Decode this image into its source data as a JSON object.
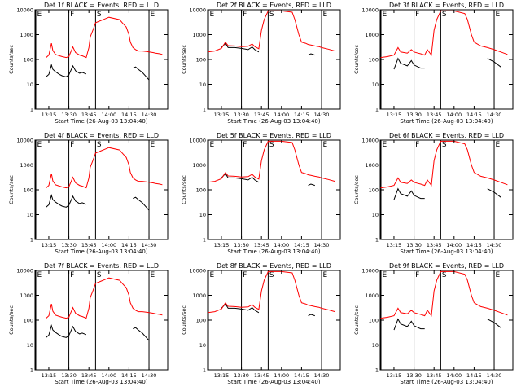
{
  "chart_data": {
    "type": "line",
    "xlabel": "Start Time (26-Aug-03 13:04:40)",
    "ylabel": "Counts/sec",
    "yscale": "log",
    "ylim": [
      1,
      10000
    ],
    "xlim": [
      "13:04:40",
      "14:44:00"
    ],
    "x_ticks": [
      "13:15",
      "13:30",
      "13:45",
      "14:00",
      "14:15",
      "14:30"
    ],
    "y_ticks": [
      "1",
      "10",
      "100",
      "1000",
      "10000"
    ],
    "series_colors": {
      "events": "#000000",
      "lld": "#ff0000"
    },
    "markers": [
      {
        "label": "E",
        "time": "13:04:40",
        "style": "solid"
      },
      {
        "label": "F",
        "time": "13:30",
        "style": "solid"
      },
      {
        "label": "S",
        "time": "13:50",
        "style": "solid"
      },
      {
        "label": "E",
        "time": "14:30",
        "style": "solid"
      }
    ],
    "panels": [
      {
        "title": "Det 1f BLACK = Events, RED = LLD",
        "x": [
          "13:10",
          "13:13",
          "13:15",
          "13:17",
          "13:18",
          "13:20",
          "13:23",
          "13:25",
          "13:28",
          "13:30",
          "13:33",
          "13:35",
          "13:38",
          "13:40",
          "13:43",
          "13:45",
          "13:46",
          "13:48",
          "13:50",
          "14:00",
          "14:08",
          "14:10",
          "14:13",
          "14:15",
          "14:16",
          "14:18",
          "14:20",
          "14:22",
          "14:25",
          "14:28",
          "14:30",
          "14:33",
          "14:35",
          "14:38",
          "14:40"
        ],
        "series": [
          {
            "key": "events",
            "values": [
              null,
              20,
              25,
              60,
              40,
              32,
              25,
              22,
              20,
              24,
              55,
              35,
              28,
              30,
              26,
              null,
              null,
              null,
              null,
              null,
              null,
              null,
              null,
              null,
              null,
              45,
              50,
              40,
              30,
              20,
              15,
              null,
              null,
              null,
              null
            ]
          },
          {
            "key": "lld",
            "values": [
              null,
              120,
              150,
              450,
              230,
              160,
              140,
              130,
              120,
              130,
              320,
              190,
              150,
              140,
              120,
              300,
              800,
              1500,
              3000,
              5000,
              4000,
              3000,
              2000,
              1000,
              500,
              300,
              250,
              220,
              220,
              210,
              200,
              190,
              180,
              170,
              160
            ]
          }
        ]
      },
      {
        "title": "Det 2f BLACK = Events, RED = LLD",
        "x": [
          "13:05",
          "13:10",
          "13:15",
          "13:18",
          "13:20",
          "13:25",
          "13:30",
          "13:35",
          "13:38",
          "13:40",
          "13:43",
          "13:45",
          "13:47",
          "13:50",
          "14:00",
          "14:08",
          "14:10",
          "14:13",
          "14:15",
          "14:18",
          "14:20",
          "14:22",
          "14:25",
          "14:28",
          "14:30",
          "14:35",
          "14:40"
        ],
        "series": [
          {
            "key": "events",
            "values": [
              null,
              null,
              300,
              450,
              300,
              300,
              280,
              250,
              320,
              250,
              200,
              null,
              null,
              null,
              null,
              null,
              null,
              null,
              null,
              null,
              150,
              170,
              150,
              null,
              null,
              null,
              null
            ]
          },
          {
            "key": "lld",
            "values": [
              200,
              220,
              280,
              500,
              360,
              350,
              330,
              340,
              420,
              330,
              270,
              1500,
              4000,
              9000,
              9000,
              8000,
              4000,
              1000,
              500,
              450,
              400,
              380,
              350,
              330,
              300,
              260,
              220
            ]
          }
        ]
      },
      {
        "title": "Det 3f BLACK = Events, RED = LLD",
        "x": [
          "13:05",
          "13:10",
          "13:15",
          "13:18",
          "13:20",
          "13:25",
          "13:28",
          "13:30",
          "13:33",
          "13:35",
          "13:38",
          "13:40",
          "13:43",
          "13:45",
          "13:47",
          "13:50",
          "14:00",
          "14:08",
          "14:10",
          "14:13",
          "14:15",
          "14:18",
          "14:20",
          "14:25",
          "14:30",
          "14:35",
          "14:40"
        ],
        "series": [
          {
            "key": "events",
            "values": [
              null,
              null,
              40,
              110,
              70,
              55,
              90,
              60,
              50,
              45,
              45,
              null,
              null,
              null,
              null,
              null,
              null,
              null,
              null,
              null,
              null,
              null,
              null,
              110,
              80,
              50,
              null
            ]
          },
          {
            "key": "lld",
            "values": [
              120,
              130,
              150,
              300,
              200,
              180,
              250,
              200,
              180,
              170,
              150,
              250,
              150,
              1500,
              4000,
              9000,
              9000,
              7000,
              4000,
              1000,
              500,
              400,
              350,
              300,
              250,
              200,
              160
            ]
          }
        ]
      },
      {
        "title": "Det 4f BLACK = Events, RED = LLD",
        "x": [
          "13:10",
          "13:13",
          "13:15",
          "13:17",
          "13:18",
          "13:20",
          "13:23",
          "13:25",
          "13:28",
          "13:30",
          "13:33",
          "13:35",
          "13:38",
          "13:40",
          "13:43",
          "13:45",
          "13:46",
          "13:48",
          "13:50",
          "14:00",
          "14:08",
          "14:10",
          "14:13",
          "14:15",
          "14:16",
          "14:18",
          "14:20",
          "14:22",
          "14:25",
          "14:28",
          "14:30",
          "14:33",
          "14:35",
          "14:38",
          "14:40"
        ],
        "series": [
          {
            "key": "events",
            "values": [
              null,
              20,
              25,
              60,
              40,
              32,
              25,
              22,
              20,
              24,
              55,
              35,
              28,
              30,
              26,
              null,
              null,
              null,
              null,
              null,
              null,
              null,
              null,
              null,
              null,
              45,
              50,
              40,
              30,
              20,
              15,
              null,
              null,
              null,
              null
            ]
          },
          {
            "key": "lld",
            "values": [
              null,
              120,
              150,
              450,
              230,
              160,
              140,
              130,
              120,
              130,
              320,
              190,
              150,
              140,
              120,
              300,
              800,
              1500,
              3000,
              5000,
              4000,
              3000,
              2000,
              1000,
              500,
              300,
              250,
              220,
              220,
              210,
              200,
              190,
              180,
              170,
              160
            ]
          }
        ]
      },
      {
        "title": "Det 5f BLACK = Events, RED = LLD",
        "x": [
          "13:05",
          "13:10",
          "13:15",
          "13:18",
          "13:20",
          "13:25",
          "13:30",
          "13:35",
          "13:38",
          "13:40",
          "13:43",
          "13:45",
          "13:47",
          "13:50",
          "14:00",
          "14:08",
          "14:10",
          "14:13",
          "14:15",
          "14:18",
          "14:20",
          "14:22",
          "14:25",
          "14:28",
          "14:30",
          "14:35",
          "14:40"
        ],
        "series": [
          {
            "key": "events",
            "values": [
              null,
              null,
              300,
              450,
              300,
              300,
              280,
              250,
              320,
              250,
              200,
              null,
              null,
              null,
              null,
              null,
              null,
              null,
              null,
              null,
              150,
              170,
              150,
              null,
              null,
              null,
              null
            ]
          },
          {
            "key": "lld",
            "values": [
              200,
              220,
              280,
              500,
              360,
              350,
              330,
              340,
              420,
              330,
              270,
              1500,
              4000,
              9000,
              9000,
              8000,
              4000,
              1000,
              500,
              450,
              400,
              380,
              350,
              330,
              300,
              260,
              220
            ]
          }
        ]
      },
      {
        "title": "Det 6f BLACK = Events, RED = LLD",
        "x": [
          "13:05",
          "13:10",
          "13:15",
          "13:18",
          "13:20",
          "13:25",
          "13:28",
          "13:30",
          "13:33",
          "13:35",
          "13:38",
          "13:40",
          "13:43",
          "13:45",
          "13:47",
          "13:50",
          "14:00",
          "14:08",
          "14:10",
          "14:13",
          "14:15",
          "14:18",
          "14:20",
          "14:25",
          "14:30",
          "14:35",
          "14:40"
        ],
        "series": [
          {
            "key": "events",
            "values": [
              null,
              null,
              40,
              110,
              70,
              55,
              90,
              60,
              50,
              45,
              45,
              null,
              null,
              null,
              null,
              null,
              null,
              null,
              null,
              null,
              null,
              null,
              null,
              110,
              80,
              50,
              null
            ]
          },
          {
            "key": "lld",
            "values": [
              120,
              130,
              150,
              300,
              200,
              180,
              250,
              200,
              180,
              170,
              150,
              250,
              150,
              1500,
              4000,
              9000,
              9000,
              7000,
              4000,
              1000,
              500,
              400,
              350,
              300,
              250,
              200,
              160
            ]
          }
        ]
      },
      {
        "title": "Det 7f BLACK = Events, RED = LLD",
        "x": [
          "13:10",
          "13:13",
          "13:15",
          "13:17",
          "13:18",
          "13:20",
          "13:23",
          "13:25",
          "13:28",
          "13:30",
          "13:33",
          "13:35",
          "13:38",
          "13:40",
          "13:43",
          "13:45",
          "13:46",
          "13:48",
          "13:50",
          "14:00",
          "14:08",
          "14:10",
          "14:13",
          "14:15",
          "14:16",
          "14:18",
          "14:20",
          "14:22",
          "14:25",
          "14:28",
          "14:30",
          "14:33",
          "14:35",
          "14:38",
          "14:40"
        ],
        "series": [
          {
            "key": "events",
            "values": [
              null,
              20,
              25,
              60,
              40,
              32,
              25,
              22,
              20,
              24,
              55,
              35,
              28,
              30,
              26,
              null,
              null,
              null,
              null,
              null,
              null,
              null,
              null,
              null,
              null,
              45,
              50,
              40,
              30,
              20,
              15,
              null,
              null,
              null,
              null
            ]
          },
          {
            "key": "lld",
            "values": [
              null,
              120,
              150,
              450,
              230,
              160,
              140,
              130,
              120,
              130,
              320,
              190,
              150,
              140,
              120,
              300,
              800,
              1500,
              3000,
              5000,
              4000,
              3000,
              2000,
              1000,
              500,
              300,
              250,
              220,
              220,
              210,
              200,
              190,
              180,
              170,
              160
            ]
          }
        ]
      },
      {
        "title": "Det 8f BLACK = Events, RED = LLD",
        "x": [
          "13:05",
          "13:10",
          "13:15",
          "13:18",
          "13:20",
          "13:25",
          "13:30",
          "13:35",
          "13:38",
          "13:40",
          "13:43",
          "13:45",
          "13:47",
          "13:50",
          "14:00",
          "14:08",
          "14:10",
          "14:13",
          "14:15",
          "14:18",
          "14:20",
          "14:22",
          "14:25",
          "14:28",
          "14:30",
          "14:35",
          "14:40"
        ],
        "series": [
          {
            "key": "events",
            "values": [
              null,
              null,
              300,
              450,
              300,
              300,
              280,
              250,
              320,
              250,
              200,
              null,
              null,
              null,
              null,
              null,
              null,
              null,
              null,
              null,
              150,
              170,
              150,
              null,
              null,
              null,
              null
            ]
          },
          {
            "key": "lld",
            "values": [
              200,
              220,
              280,
              500,
              360,
              350,
              330,
              340,
              420,
              330,
              270,
              1500,
              4000,
              9000,
              9000,
              8000,
              4000,
              1000,
              500,
              450,
              400,
              380,
              350,
              330,
              300,
              260,
              220
            ]
          }
        ]
      },
      {
        "title": "Det 9f BLACK = Events, RED = LLD",
        "x": [
          "13:05",
          "13:10",
          "13:15",
          "13:18",
          "13:20",
          "13:25",
          "13:28",
          "13:30",
          "13:33",
          "13:35",
          "13:38",
          "13:40",
          "13:43",
          "13:45",
          "13:47",
          "13:50",
          "14:00",
          "14:08",
          "14:10",
          "14:13",
          "14:15",
          "14:18",
          "14:20",
          "14:25",
          "14:30",
          "14:35",
          "14:40"
        ],
        "series": [
          {
            "key": "events",
            "values": [
              null,
              null,
              40,
              110,
              70,
              55,
              90,
              60,
              50,
              45,
              45,
              null,
              null,
              null,
              null,
              null,
              null,
              null,
              null,
              null,
              null,
              null,
              null,
              110,
              80,
              50,
              null
            ]
          },
          {
            "key": "lld",
            "values": [
              120,
              130,
              150,
              300,
              200,
              180,
              250,
              200,
              180,
              170,
              150,
              250,
              150,
              1500,
              4000,
              9000,
              9000,
              7000,
              4000,
              1000,
              500,
              400,
              350,
              300,
              250,
              200,
              160
            ]
          }
        ]
      }
    ]
  }
}
